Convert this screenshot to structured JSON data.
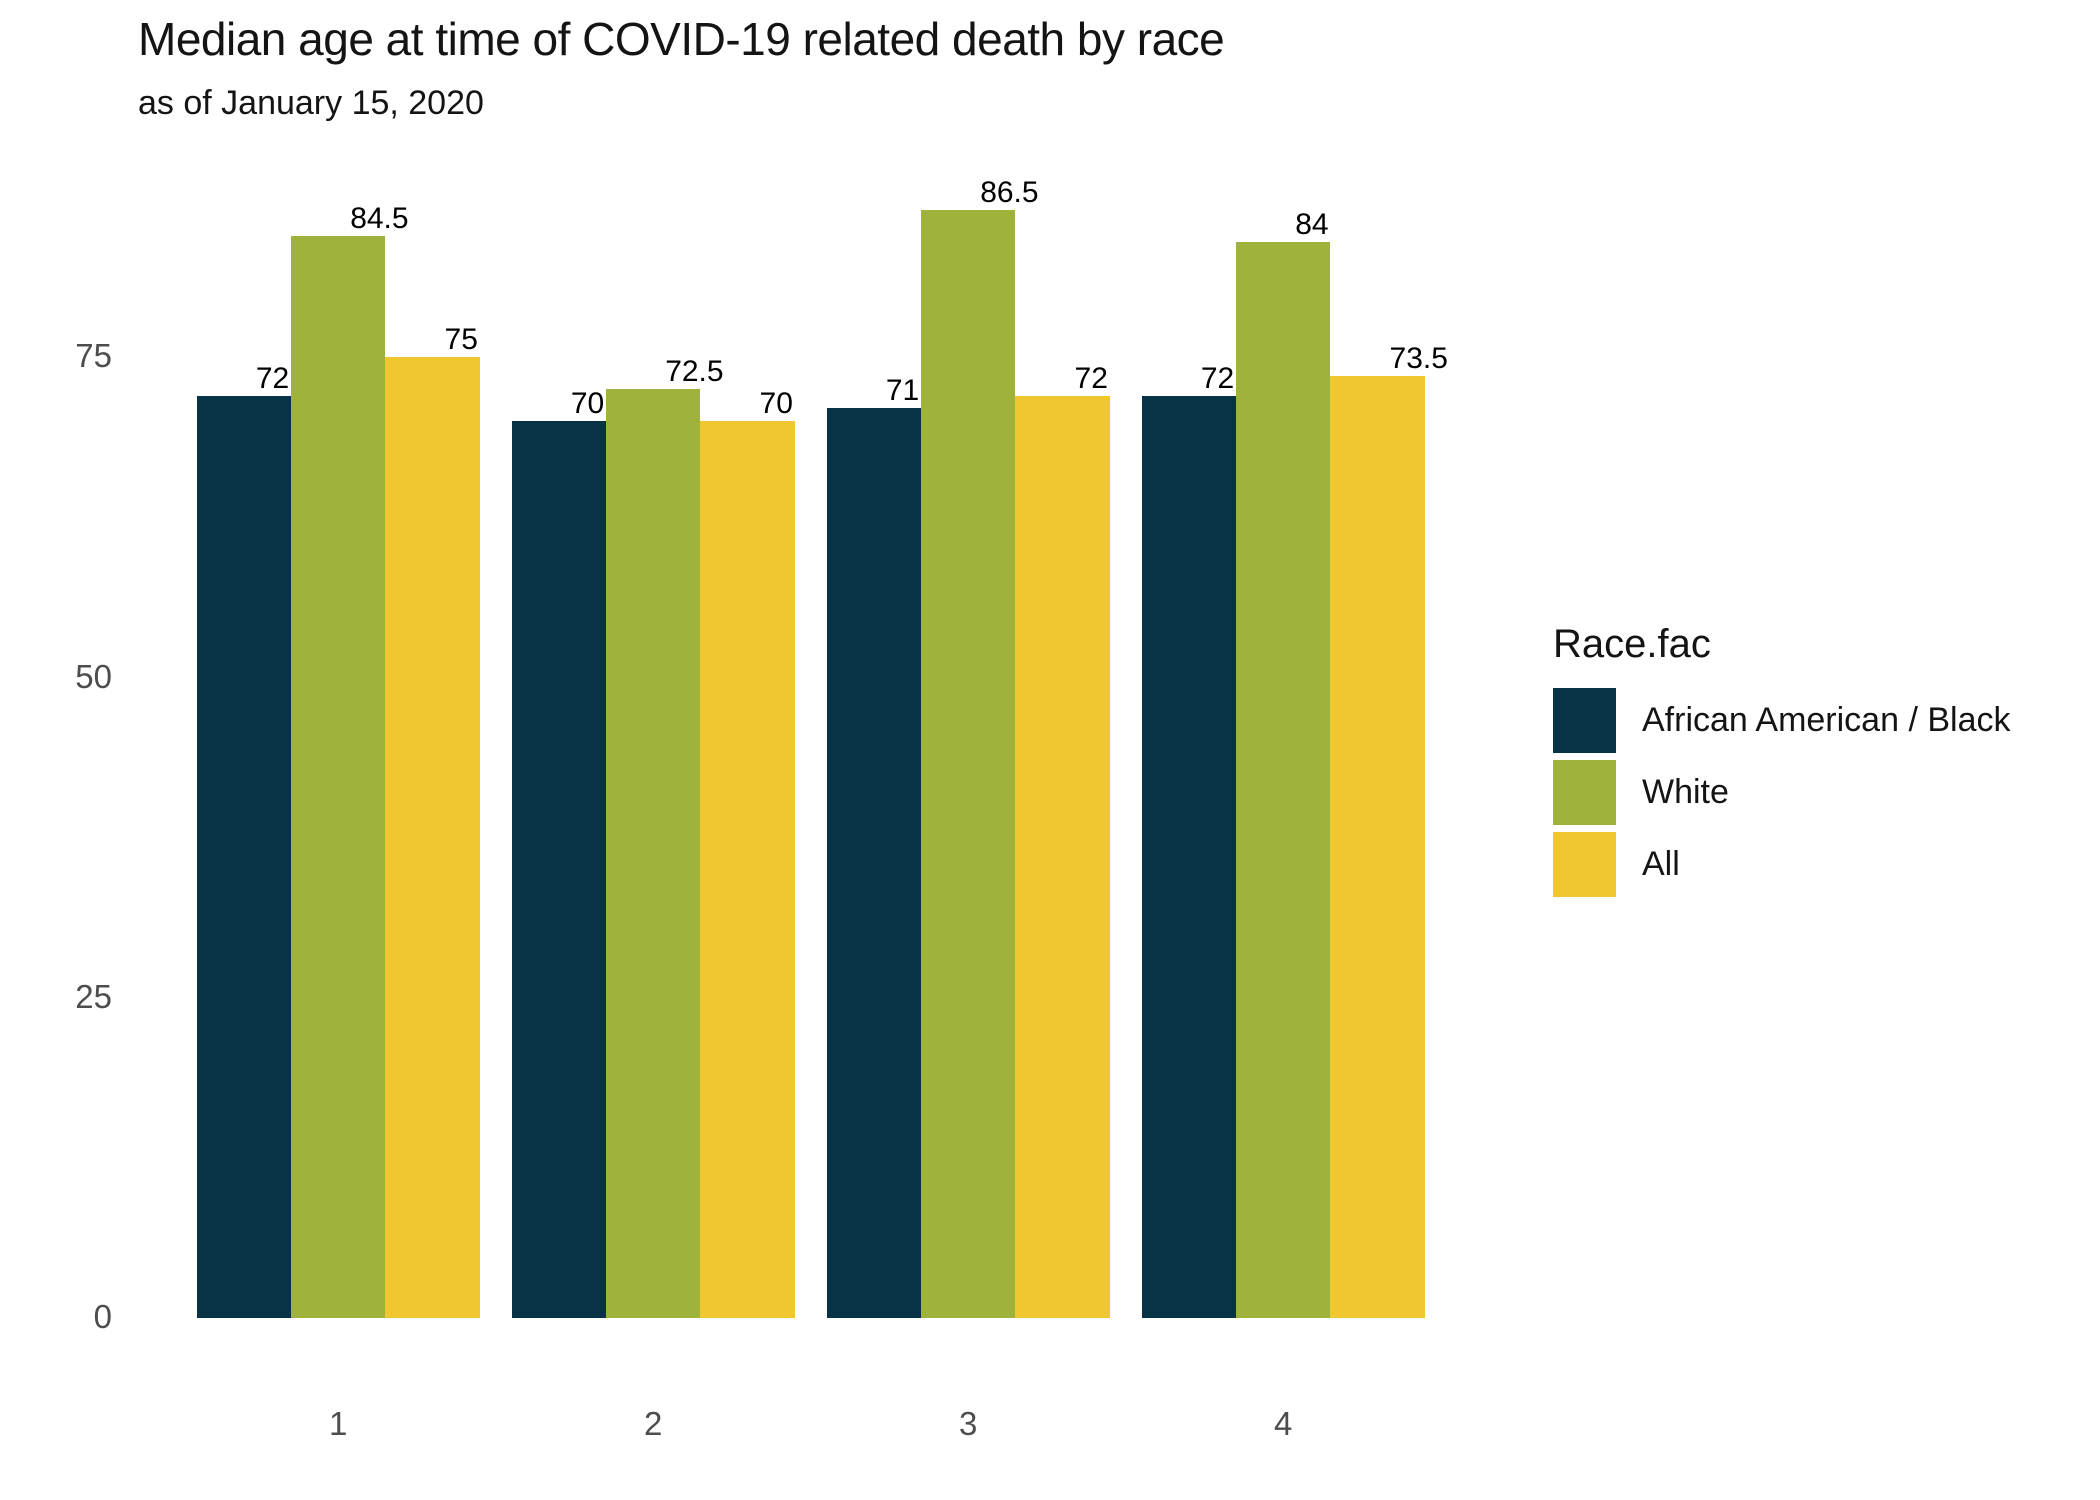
{
  "chart_data": {
    "type": "bar",
    "title": "Median age at time of COVID-19 related death by race",
    "subtitle": "as of January 15, 2020",
    "xlabel": "",
    "ylabel": "",
    "categories": [
      "1",
      "2",
      "3",
      "4"
    ],
    "series": [
      {
        "name": "African American / Black",
        "color": "#083347",
        "values": [
          72,
          70,
          71,
          72
        ]
      },
      {
        "name": "White",
        "color": "#9fb23c",
        "values": [
          84.5,
          72.5,
          86.5,
          84
        ]
      },
      {
        "name": "All",
        "color": "#f0c72e",
        "values": [
          75,
          70,
          72,
          73.5
        ]
      }
    ],
    "legend_title": "Race.fac",
    "legend_position": "right",
    "y_ticks": [
      0,
      25,
      50,
      75
    ],
    "ylim": [
      0,
      103
    ],
    "grid": false,
    "bar_value_labels": true
  }
}
